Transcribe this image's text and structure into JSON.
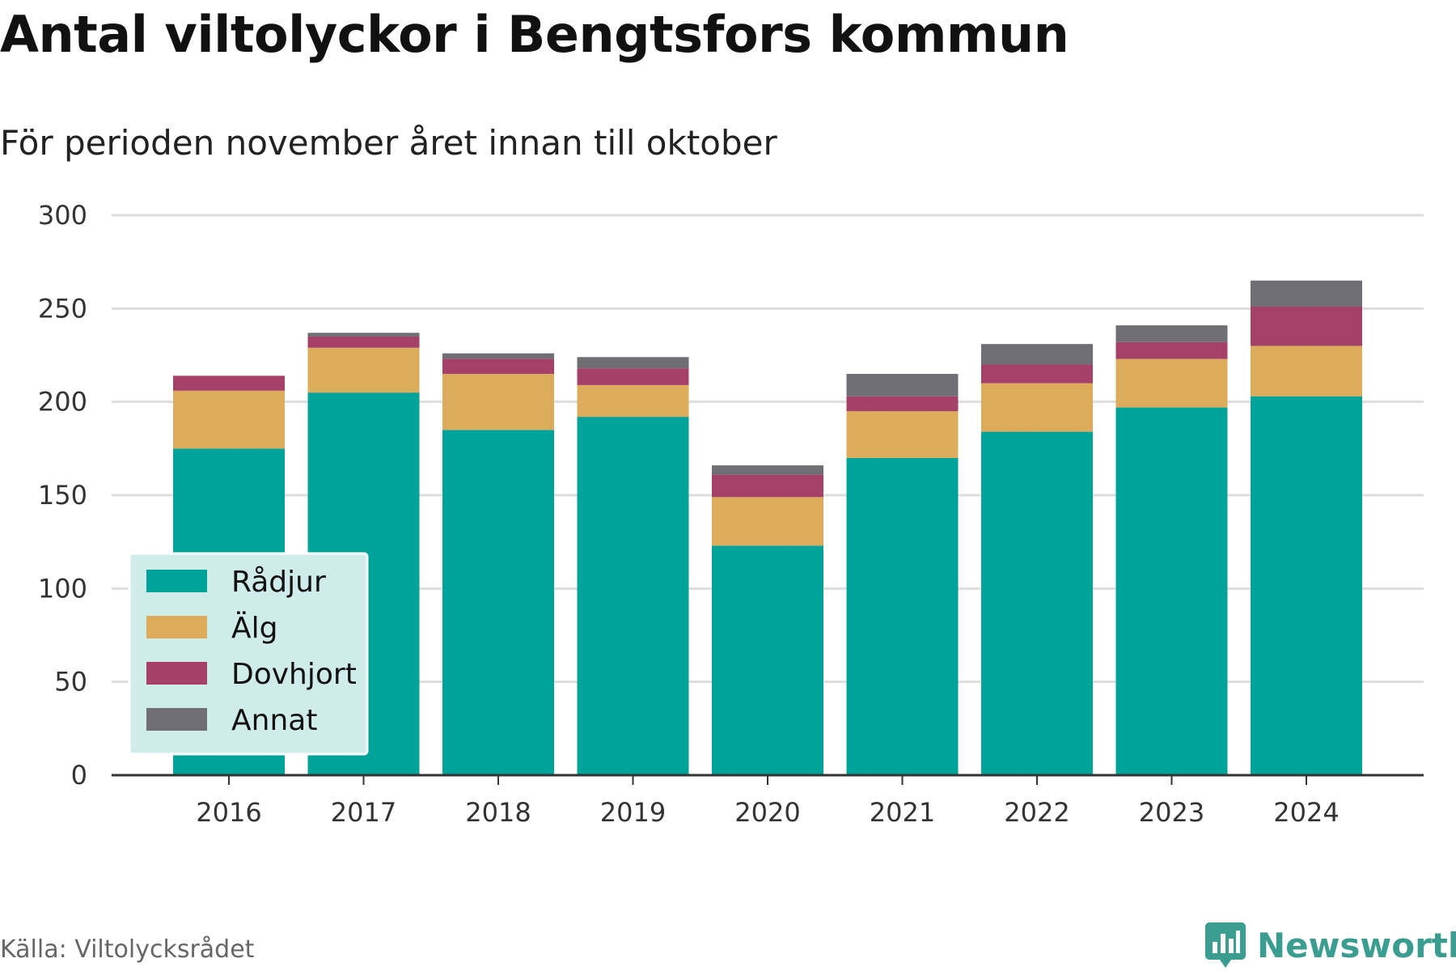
{
  "header": {
    "title": "Antal viltolyckor i Bengtsfors kommun",
    "subtitle": "För perioden november året innan till oktober"
  },
  "footer": {
    "source": "Källa: Viltolycksrådet",
    "brand": "Newsworthy",
    "brand_icon": "bar-chart-logo-icon"
  },
  "colors": {
    "Rådjur": "#00a39a",
    "Älg": "#dcac5c",
    "Dovhjort": "#a54168",
    "Annat": "#6e6e74",
    "grid": "#dddddd",
    "axis": "#333333",
    "legend_bg": "#d0ecea",
    "brand": "#3a9d8f"
  },
  "chart_data": {
    "type": "bar",
    "stacked": true,
    "categories": [
      "2016",
      "2017",
      "2018",
      "2019",
      "2020",
      "2021",
      "2022",
      "2023",
      "2024"
    ],
    "series": [
      {
        "name": "Rådjur",
        "values": [
          175,
          205,
          185,
          192,
          123,
          170,
          184,
          197,
          203
        ]
      },
      {
        "name": "Älg",
        "values": [
          31,
          24,
          30,
          17,
          26,
          25,
          26,
          26,
          27
        ]
      },
      {
        "name": "Dovhjort",
        "values": [
          8,
          6,
          8,
          9,
          12,
          8,
          10,
          9,
          21
        ]
      },
      {
        "name": "Annat",
        "values": [
          0,
          2,
          3,
          6,
          5,
          12,
          11,
          9,
          14
        ]
      }
    ],
    "ylim": [
      0,
      300
    ],
    "yticks": [
      0,
      50,
      100,
      150,
      200,
      250,
      300
    ],
    "grid": true,
    "legend_position": "bottom-left"
  }
}
